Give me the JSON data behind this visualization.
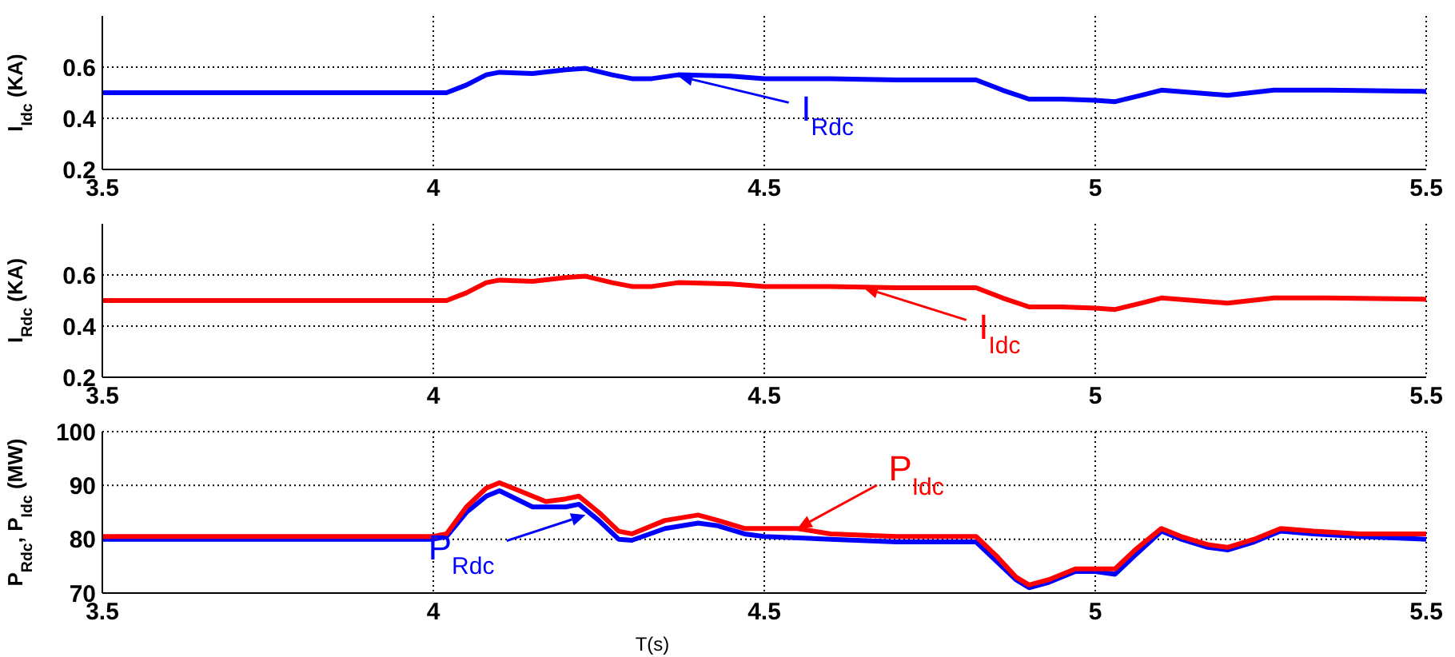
{
  "chart_data": [
    {
      "type": "line",
      "ylabel": "I$_{Idc}$ (KA)",
      "xlim": [
        3.5,
        5.5
      ],
      "xticks": [
        3.5,
        4,
        4.5,
        5,
        5.5
      ],
      "ylim": [
        0.2,
        0.8
      ],
      "yticks": [
        0.2,
        0.4,
        0.6
      ],
      "grid": true,
      "line_style": "solid",
      "annotations": [
        {
          "text": "I$_{Rdc}$",
          "x": 4.37,
          "y": 0.565
        }
      ],
      "series": [
        {
          "color": "#0000ff",
          "x": [
            3.5,
            3.7,
            3.9,
            4.0,
            4.02,
            4.05,
            4.08,
            4.1,
            4.15,
            4.2,
            4.23,
            4.27,
            4.3,
            4.33,
            4.37,
            4.45,
            4.5,
            4.6,
            4.7,
            4.82,
            4.86,
            4.9,
            4.95,
            5.0,
            5.03,
            5.07,
            5.1,
            5.15,
            5.2,
            5.27,
            5.35,
            5.5
          ],
          "values": [
            0.5,
            0.5,
            0.5,
            0.5,
            0.5,
            0.53,
            0.57,
            0.58,
            0.575,
            0.59,
            0.595,
            0.57,
            0.555,
            0.555,
            0.57,
            0.565,
            0.555,
            0.555,
            0.55,
            0.55,
            0.51,
            0.475,
            0.475,
            0.47,
            0.465,
            0.49,
            0.51,
            0.5,
            0.49,
            0.51,
            0.51,
            0.505
          ]
        }
      ]
    },
    {
      "type": "line",
      "ylabel": "I$_{Rdc}$ (KA)",
      "xlim": [
        3.5,
        5.5
      ],
      "xticks": [
        3.5,
        4,
        4.5,
        5,
        5.5
      ],
      "ylim": [
        0.2,
        0.8
      ],
      "yticks": [
        0.2,
        0.4,
        0.6
      ],
      "grid": true,
      "line_style": "solid",
      "annotations": [
        {
          "text": "I$_{Idc}$",
          "x": 4.65,
          "y": 0.55
        }
      ],
      "series": [
        {
          "color": "#ff0000",
          "x": [
            3.5,
            3.7,
            3.9,
            4.0,
            4.02,
            4.05,
            4.08,
            4.1,
            4.15,
            4.2,
            4.23,
            4.27,
            4.3,
            4.33,
            4.37,
            4.45,
            4.5,
            4.6,
            4.7,
            4.82,
            4.86,
            4.9,
            4.95,
            5.0,
            5.03,
            5.07,
            5.1,
            5.15,
            5.2,
            5.27,
            5.35,
            5.5
          ],
          "values": [
            0.5,
            0.5,
            0.5,
            0.5,
            0.5,
            0.53,
            0.57,
            0.58,
            0.575,
            0.59,
            0.595,
            0.57,
            0.555,
            0.555,
            0.57,
            0.565,
            0.555,
            0.555,
            0.55,
            0.55,
            0.51,
            0.475,
            0.475,
            0.47,
            0.465,
            0.49,
            0.51,
            0.5,
            0.49,
            0.51,
            0.51,
            0.505
          ]
        }
      ]
    },
    {
      "type": "line",
      "ylabel": "P$_{Rdc}$, P$_{Idc}$ (MW)",
      "xlabel": "T(s)",
      "xlim": [
        3.5,
        5.5
      ],
      "xticks": [
        3.5,
        4,
        4.5,
        5,
        5.5
      ],
      "ylim": [
        70,
        100
      ],
      "yticks": [
        70,
        80,
        90,
        100
      ],
      "grid": true,
      "line_style": "solid",
      "annotations": [
        {
          "text": "P$_{Idc}$",
          "x": 4.55,
          "y": 82
        },
        {
          "text": "P$_{Rdc}$",
          "x": 4.23,
          "y": 84.5
        }
      ],
      "series": [
        {
          "color": "#0000ff",
          "x": [
            3.5,
            3.7,
            3.9,
            4.0,
            4.02,
            4.05,
            4.08,
            4.1,
            4.15,
            4.2,
            4.22,
            4.25,
            4.28,
            4.3,
            4.35,
            4.4,
            4.43,
            4.47,
            4.5,
            4.6,
            4.7,
            4.82,
            4.85,
            4.88,
            4.9,
            4.93,
            4.97,
            5.0,
            5.03,
            5.06,
            5.1,
            5.13,
            5.17,
            5.2,
            5.24,
            5.28,
            5.33,
            5.4,
            5.5
          ],
          "values": [
            80,
            80,
            80,
            80,
            80.5,
            85,
            88,
            89,
            86,
            86,
            86.5,
            83.5,
            80,
            79.8,
            82,
            83,
            82.5,
            81,
            80.5,
            80,
            79.5,
            79.5,
            76,
            72.5,
            71,
            72,
            74,
            74,
            73.5,
            77,
            81.5,
            80,
            78.5,
            78,
            79.5,
            81.5,
            81,
            80.5,
            80
          ]
        },
        {
          "color": "#ff0000",
          "x": [
            3.5,
            3.7,
            3.9,
            4.0,
            4.02,
            4.05,
            4.08,
            4.1,
            4.13,
            4.17,
            4.2,
            4.22,
            4.25,
            4.28,
            4.3,
            4.35,
            4.4,
            4.43,
            4.47,
            4.5,
            4.55,
            4.6,
            4.7,
            4.82,
            4.85,
            4.88,
            4.9,
            4.93,
            4.97,
            5.0,
            5.03,
            5.06,
            5.1,
            5.13,
            5.17,
            5.2,
            5.24,
            5.28,
            5.33,
            5.4,
            5.5
          ],
          "values": [
            80.5,
            80.5,
            80.5,
            80.5,
            81,
            86,
            89.5,
            90.5,
            89,
            87,
            87.5,
            88,
            85,
            81.5,
            81,
            83.5,
            84.5,
            83.5,
            82,
            82,
            82,
            81,
            80.5,
            80.5,
            77,
            73,
            71.5,
            72.5,
            74.5,
            74.5,
            74.5,
            78,
            82,
            80.5,
            79,
            78.5,
            80,
            82,
            81.5,
            81,
            81
          ]
        }
      ]
    }
  ]
}
